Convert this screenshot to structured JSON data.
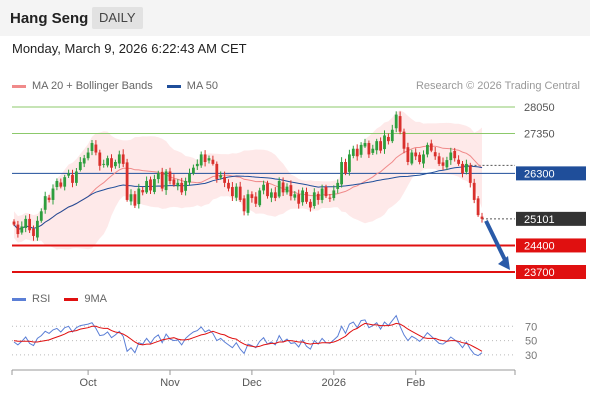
{
  "header": {
    "title": "Hang Seng",
    "timeframe": "DAILY"
  },
  "datetime": "Monday, March 9, 2026 6:22:43 AM CET",
  "legend": {
    "bb_label": "MA 20 + Bollinger Bands",
    "ma50_label": "MA 50",
    "rsi_label": "RSI",
    "rsi9_label": "9MA"
  },
  "copyright": "Research © 2026 Trading Central",
  "colors": {
    "bb_fill": "#fde2e2",
    "ma20": "#f08a8a",
    "ma50": "#1f4e9a",
    "bull": "#2e9e3e",
    "bear": "#d9302c",
    "resistance": "#8cc96b",
    "support": "#e01010",
    "pivot": "#1f4e9a",
    "last": "#333333",
    "rsi": "#5b7fd6",
    "rsi_ma": "#e01010",
    "arrow": "#2a5aa8"
  },
  "chart_data": {
    "type": "candlestick",
    "price_axis": {
      "min": 23700,
      "max": 28050
    },
    "levels": [
      {
        "label": "28050",
        "value": 28050,
        "kind": "resistance"
      },
      {
        "label": "27350",
        "value": 27350,
        "kind": "resistance"
      },
      {
        "label": "26300",
        "value": 26300,
        "kind": "pivot"
      },
      {
        "label": "25101",
        "value": 25101,
        "kind": "last"
      },
      {
        "label": "24400",
        "value": 24400,
        "kind": "support"
      },
      {
        "label": "23700",
        "value": 23700,
        "kind": "support"
      }
    ],
    "projection": {
      "from": 25101,
      "to": 23700
    },
    "x_labels": [
      "Oct",
      "Nov",
      "Dec",
      "2026",
      "Feb"
    ],
    "x_label_index": [
      19,
      40,
      61,
      82,
      103
    ],
    "closes": [
      24950,
      24700,
      24900,
      25100,
      24800,
      24650,
      25050,
      25300,
      25700,
      25600,
      25900,
      26100,
      25950,
      26200,
      26300,
      26050,
      26350,
      26600,
      26700,
      26850,
      27100,
      26850,
      26500,
      26550,
      26700,
      26450,
      26600,
      26800,
      26550,
      25600,
      25750,
      25450,
      25900,
      25800,
      26100,
      25850,
      26150,
      26300,
      25900,
      26350,
      26100,
      26000,
      26050,
      25800,
      26100,
      26300,
      26450,
      26550,
      26800,
      26600,
      26700,
      26550,
      26150,
      26250,
      26050,
      25900,
      25700,
      25950,
      25600,
      25300,
      25750,
      25650,
      25500,
      25850,
      26000,
      25700,
      25800,
      25650,
      26100,
      25800,
      25950,
      25700,
      25750,
      25500,
      25850,
      25550,
      25400,
      25800,
      25600,
      25900,
      25700,
      25650,
      25850,
      26050,
      26600,
      26300,
      26800,
      26950,
      26750,
      27050,
      27100,
      26800,
      26950,
      27150,
      26900,
      27300,
      27150,
      27450,
      27850,
      27400,
      26950,
      26600,
      26850,
      26750,
      26600,
      26800,
      27050,
      26900,
      26750,
      26550,
      26500,
      26650,
      26850,
      26700,
      26550,
      26300,
      26550,
      26050,
      25600,
      25200,
      25101
    ],
    "indicator": {
      "name": "RSI",
      "axis_ticks": [
        70,
        50,
        30
      ],
      "values": [
        48,
        44,
        49,
        55,
        46,
        43,
        53,
        57,
        63,
        60,
        65,
        67,
        62,
        68,
        70,
        62,
        68,
        71,
        72,
        73,
        75,
        67,
        57,
        58,
        62,
        54,
        58,
        63,
        56,
        35,
        40,
        33,
        47,
        45,
        53,
        46,
        54,
        58,
        47,
        59,
        52,
        50,
        51,
        44,
        53,
        58,
        62,
        64,
        69,
        62,
        65,
        60,
        50,
        53,
        48,
        44,
        40,
        47,
        38,
        32,
        45,
        43,
        40,
        49,
        54,
        45,
        48,
        44,
        57,
        48,
        52,
        46,
        47,
        41,
        51,
        42,
        38,
        50,
        45,
        53,
        47,
        46,
        51,
        56,
        70,
        60,
        73,
        76,
        68,
        78,
        79,
        68,
        71,
        75,
        66,
        76,
        71,
        78,
        85,
        70,
        58,
        50,
        56,
        53,
        49,
        54,
        61,
        56,
        51,
        46,
        45,
        49,
        55,
        51,
        47,
        40,
        48,
        38,
        31,
        29,
        33
      ],
      "ma_values": [
        50,
        49,
        49,
        49,
        49,
        48,
        48,
        49,
        50,
        51,
        53,
        55,
        57,
        59,
        62,
        63,
        64,
        66,
        67,
        68,
        70,
        70,
        68,
        67,
        67,
        64,
        62,
        61,
        59,
        56,
        52,
        48,
        45,
        44,
        45,
        45,
        47,
        49,
        51,
        52,
        53,
        54,
        52,
        51,
        51,
        52,
        54,
        56,
        58,
        59,
        61,
        63,
        61,
        59,
        58,
        55,
        53,
        52,
        48,
        45,
        43,
        42,
        41,
        42,
        44,
        45,
        46,
        46,
        48,
        48,
        50,
        50,
        49,
        48,
        48,
        46,
        45,
        46,
        46,
        47,
        47,
        47,
        48,
        50,
        53,
        56,
        61,
        65,
        67,
        71,
        74,
        73,
        72,
        72,
        71,
        71,
        71,
        72,
        74,
        73,
        70,
        66,
        63,
        60,
        57,
        54,
        53,
        53,
        53,
        51,
        50,
        49,
        50,
        50,
        49,
        47,
        46,
        44,
        41,
        38,
        35
      ]
    }
  }
}
